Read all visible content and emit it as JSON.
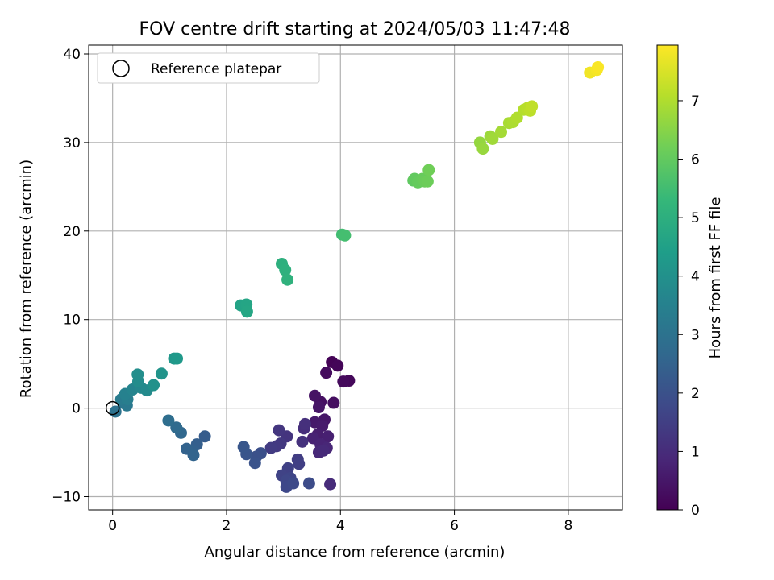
{
  "chart_data": {
    "type": "scatter",
    "title": "FOV centre drift starting at 2024/05/03 11:47:48",
    "xlabel": "Angular distance from reference (arcmin)",
    "ylabel": "Rotation from reference (arcmin)",
    "xlim": [
      -0.42,
      8.95
    ],
    "ylim": [
      -11.5,
      41.0
    ],
    "xticks": [
      0,
      2,
      4,
      6,
      8
    ],
    "yticks": [
      -10,
      0,
      10,
      20,
      30,
      40
    ],
    "grid": true,
    "legend": {
      "placement": "top-left",
      "entries": [
        "Reference platepar"
      ]
    },
    "reference_point": {
      "x": 0,
      "y": 0
    },
    "colorbar": {
      "label": "Hours from first FF file",
      "range": [
        0,
        7.95
      ],
      "ticks": [
        0,
        1,
        2,
        3,
        4,
        5,
        6,
        7
      ],
      "colormap": "viridis",
      "stops": [
        "#440154",
        "#482878",
        "#3e4989",
        "#31688e",
        "#26828e",
        "#1f9e89",
        "#35b779",
        "#6ece58",
        "#b5de2b",
        "#fde725"
      ]
    },
    "points": [
      {
        "x": 3.85,
        "y": 5.2,
        "c": 0.05
      },
      {
        "x": 3.95,
        "y": 4.8,
        "c": 0.1
      },
      {
        "x": 4.15,
        "y": 3.1,
        "c": 0.15
      },
      {
        "x": 4.05,
        "y": 3.0,
        "c": 0.2
      },
      {
        "x": 3.75,
        "y": 4.0,
        "c": 0.25
      },
      {
        "x": 3.88,
        "y": 0.6,
        "c": 0.3
      },
      {
        "x": 3.65,
        "y": 0.7,
        "c": 0.35
      },
      {
        "x": 3.55,
        "y": 1.4,
        "c": 0.4
      },
      {
        "x": 3.62,
        "y": 0.1,
        "c": 0.45
      },
      {
        "x": 3.72,
        "y": -1.3,
        "c": 0.5
      },
      {
        "x": 3.55,
        "y": -1.6,
        "c": 0.55
      },
      {
        "x": 3.68,
        "y": -2.0,
        "c": 0.6
      },
      {
        "x": 3.6,
        "y": -3.0,
        "c": 0.65
      },
      {
        "x": 3.78,
        "y": -3.2,
        "c": 0.7
      },
      {
        "x": 3.52,
        "y": -3.4,
        "c": 0.75
      },
      {
        "x": 3.65,
        "y": -4.1,
        "c": 0.8
      },
      {
        "x": 3.76,
        "y": -4.5,
        "c": 0.85
      },
      {
        "x": 3.62,
        "y": -5.0,
        "c": 0.9
      },
      {
        "x": 3.7,
        "y": -4.8,
        "c": 0.95
      },
      {
        "x": 3.82,
        "y": -8.6,
        "c": 1.0
      },
      {
        "x": 3.36,
        "y": -2.3,
        "c": 1.05
      },
      {
        "x": 3.38,
        "y": -1.8,
        "c": 1.1
      },
      {
        "x": 3.33,
        "y": -3.8,
        "c": 1.15
      },
      {
        "x": 3.06,
        "y": -3.2,
        "c": 1.2
      },
      {
        "x": 2.92,
        "y": -2.5,
        "c": 1.25
      },
      {
        "x": 2.95,
        "y": -4.0,
        "c": 1.3
      },
      {
        "x": 2.88,
        "y": -4.3,
        "c": 1.35
      },
      {
        "x": 2.78,
        "y": -4.5,
        "c": 1.4
      },
      {
        "x": 3.25,
        "y": -5.8,
        "c": 1.45
      },
      {
        "x": 3.27,
        "y": -6.3,
        "c": 1.5
      },
      {
        "x": 3.08,
        "y": -6.8,
        "c": 1.55
      },
      {
        "x": 2.97,
        "y": -7.6,
        "c": 1.6
      },
      {
        "x": 3.12,
        "y": -7.9,
        "c": 1.65
      },
      {
        "x": 3.05,
        "y": -8.2,
        "c": 1.7
      },
      {
        "x": 3.05,
        "y": -8.9,
        "c": 1.75
      },
      {
        "x": 3.17,
        "y": -8.5,
        "c": 1.8
      },
      {
        "x": 3.45,
        "y": -8.5,
        "c": 1.85
      },
      {
        "x": 2.6,
        "y": -5.1,
        "c": 1.95
      },
      {
        "x": 2.52,
        "y": -5.5,
        "c": 2.0
      },
      {
        "x": 2.5,
        "y": -6.2,
        "c": 2.05
      },
      {
        "x": 2.35,
        "y": -5.2,
        "c": 2.1
      },
      {
        "x": 2.3,
        "y": -4.4,
        "c": 2.15
      },
      {
        "x": 1.62,
        "y": -3.2,
        "c": 2.3
      },
      {
        "x": 1.48,
        "y": -4.1,
        "c": 2.4
      },
      {
        "x": 1.4,
        "y": -4.8,
        "c": 2.45
      },
      {
        "x": 1.3,
        "y": -4.6,
        "c": 2.5
      },
      {
        "x": 1.42,
        "y": -5.3,
        "c": 2.55
      },
      {
        "x": 1.2,
        "y": -2.8,
        "c": 2.65
      },
      {
        "x": 1.12,
        "y": -2.2,
        "c": 2.75
      },
      {
        "x": 0.98,
        "y": -1.4,
        "c": 2.85
      },
      {
        "x": 0.05,
        "y": -0.4,
        "c": 3.0
      },
      {
        "x": 0.18,
        "y": 0.6,
        "c": 3.1
      },
      {
        "x": 0.25,
        "y": 0.3,
        "c": 3.2
      },
      {
        "x": 0.15,
        "y": 1.0,
        "c": 3.3
      },
      {
        "x": 0.26,
        "y": 1.0,
        "c": 3.4
      },
      {
        "x": 0.22,
        "y": 1.6,
        "c": 3.5
      },
      {
        "x": 0.35,
        "y": 2.1,
        "c": 3.6
      },
      {
        "x": 0.5,
        "y": 2.3,
        "c": 3.7
      },
      {
        "x": 0.6,
        "y": 2.0,
        "c": 3.8
      },
      {
        "x": 0.45,
        "y": 3.0,
        "c": 3.85
      },
      {
        "x": 0.44,
        "y": 3.8,
        "c": 3.9
      },
      {
        "x": 0.72,
        "y": 2.6,
        "c": 4.0
      },
      {
        "x": 0.86,
        "y": 3.9,
        "c": 4.1
      },
      {
        "x": 1.08,
        "y": 5.6,
        "c": 4.2
      },
      {
        "x": 1.13,
        "y": 5.6,
        "c": 4.25
      },
      {
        "x": 2.25,
        "y": 11.6,
        "c": 4.6
      },
      {
        "x": 2.35,
        "y": 11.7,
        "c": 4.65
      },
      {
        "x": 2.36,
        "y": 10.9,
        "c": 4.7
      },
      {
        "x": 2.97,
        "y": 16.3,
        "c": 5.0
      },
      {
        "x": 3.03,
        "y": 15.6,
        "c": 5.05
      },
      {
        "x": 3.07,
        "y": 14.5,
        "c": 5.1
      },
      {
        "x": 4.03,
        "y": 19.6,
        "c": 5.5
      },
      {
        "x": 4.08,
        "y": 19.5,
        "c": 5.55
      },
      {
        "x": 5.28,
        "y": 25.7,
        "c": 5.95
      },
      {
        "x": 5.3,
        "y": 25.9,
        "c": 6.0
      },
      {
        "x": 5.36,
        "y": 25.5,
        "c": 6.05
      },
      {
        "x": 5.44,
        "y": 25.9,
        "c": 6.08
      },
      {
        "x": 5.48,
        "y": 25.6,
        "c": 6.12
      },
      {
        "x": 5.53,
        "y": 25.6,
        "c": 6.15
      },
      {
        "x": 5.55,
        "y": 26.9,
        "c": 6.2
      },
      {
        "x": 6.45,
        "y": 30.0,
        "c": 6.65
      },
      {
        "x": 6.5,
        "y": 29.3,
        "c": 6.7
      },
      {
        "x": 6.63,
        "y": 30.7,
        "c": 6.75
      },
      {
        "x": 6.67,
        "y": 30.4,
        "c": 6.8
      },
      {
        "x": 6.82,
        "y": 31.2,
        "c": 6.85
      },
      {
        "x": 6.96,
        "y": 32.2,
        "c": 6.9
      },
      {
        "x": 7.03,
        "y": 32.3,
        "c": 6.95
      },
      {
        "x": 7.1,
        "y": 32.8,
        "c": 7.0
      },
      {
        "x": 7.22,
        "y": 33.7,
        "c": 7.05
      },
      {
        "x": 7.28,
        "y": 33.9,
        "c": 7.1
      },
      {
        "x": 7.33,
        "y": 33.6,
        "c": 7.15
      },
      {
        "x": 7.36,
        "y": 34.1,
        "c": 7.2
      },
      {
        "x": 8.38,
        "y": 37.9,
        "c": 7.8
      },
      {
        "x": 8.5,
        "y": 38.2,
        "c": 7.85
      },
      {
        "x": 8.52,
        "y": 38.5,
        "c": 7.9
      }
    ]
  }
}
